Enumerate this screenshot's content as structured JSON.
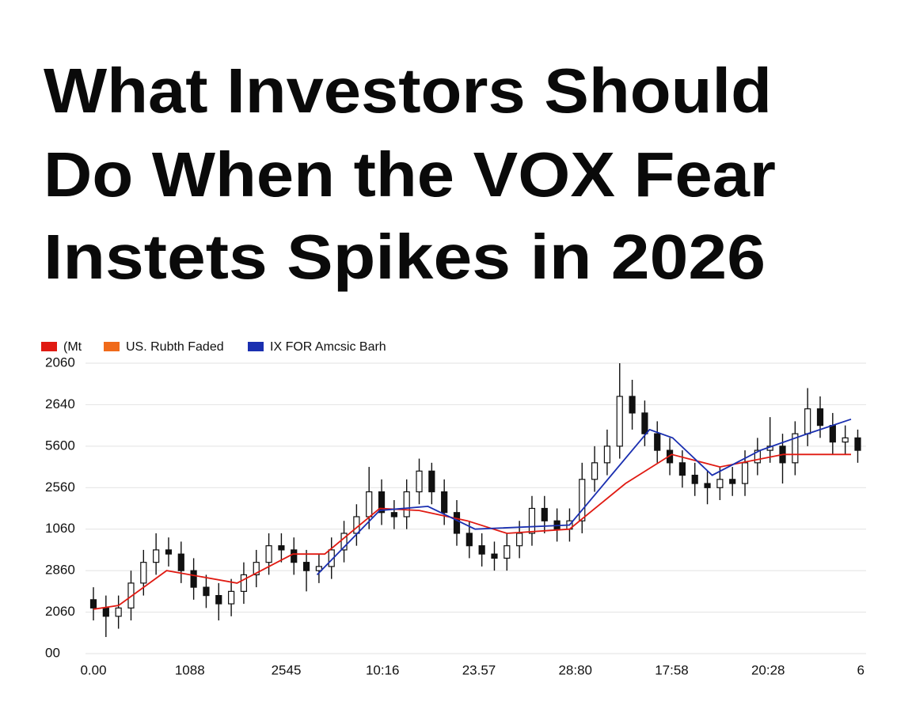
{
  "chart_data": {
    "type": "candlestick",
    "title_lines": [
      "What Investors Should",
      "Do When the VOX Fear",
      "Instets Spikes in 2026"
    ],
    "xlim": [
      0,
      8
    ],
    "xticks": [
      {
        "value": 0,
        "label": "0.00"
      },
      {
        "value": 1,
        "label": "1088"
      },
      {
        "value": 2,
        "label": "2545"
      },
      {
        "value": 3,
        "label": "10:16"
      },
      {
        "value": 4,
        "label": "23.57"
      },
      {
        "value": 5,
        "label": "28:80"
      },
      {
        "value": 6,
        "label": "17:58"
      },
      {
        "value": 7,
        "label": "20:28"
      },
      {
        "value": 8,
        "label": "6"
      }
    ],
    "ylim": [
      0,
      7
    ],
    "yticks": [
      {
        "value": 0,
        "label": "00"
      },
      {
        "value": 1,
        "label": "2060"
      },
      {
        "value": 2,
        "label": "2860"
      },
      {
        "value": 3,
        "label": "1060"
      },
      {
        "value": 4,
        "label": "2560"
      },
      {
        "value": 5,
        "label": "5600"
      },
      {
        "value": 6,
        "label": "2640"
      },
      {
        "value": 7,
        "label": "2060"
      }
    ],
    "grid": true,
    "x": [
      0,
      0.13,
      0.26,
      0.39,
      0.52,
      0.65,
      0.78,
      0.91,
      1.04,
      1.17,
      1.3,
      1.43,
      1.56,
      1.69,
      1.82,
      1.95,
      2.08,
      2.21,
      2.34,
      2.47,
      2.6,
      2.73,
      2.86,
      2.99,
      3.12,
      3.25,
      3.38,
      3.51,
      3.64,
      3.77,
      3.9,
      4.03,
      4.16,
      4.29,
      4.42,
      4.55,
      4.68,
      4.81,
      4.94,
      5.07,
      5.2,
      5.33,
      5.46,
      5.59,
      5.72,
      5.85,
      5.98,
      6.11,
      6.24,
      6.37,
      6.5,
      6.63,
      6.76,
      6.89,
      7.02,
      7.15,
      7.28,
      7.41,
      7.54,
      7.67,
      7.8,
      7.93
    ],
    "open": [
      1.3,
      1.1,
      0.9,
      1.1,
      1.7,
      2.2,
      2.5,
      2.4,
      2.0,
      1.6,
      1.4,
      1.2,
      1.5,
      1.9,
      2.2,
      2.6,
      2.5,
      2.2,
      2.0,
      2.1,
      2.5,
      2.9,
      3.3,
      3.9,
      3.4,
      3.3,
      3.9,
      4.4,
      3.9,
      3.4,
      2.9,
      2.6,
      2.4,
      2.3,
      2.6,
      2.9,
      3.5,
      3.2,
      3.0,
      3.2,
      4.2,
      4.6,
      5.0,
      6.2,
      5.8,
      5.3,
      4.9,
      4.6,
      4.3,
      4.1,
      4.0,
      4.2,
      4.1,
      4.6,
      4.9,
      5.0,
      4.6,
      5.3,
      5.9,
      5.5,
      5.1,
      5.2
    ],
    "high": [
      1.6,
      1.4,
      1.4,
      2.0,
      2.5,
      2.9,
      2.8,
      2.7,
      2.3,
      1.9,
      1.7,
      1.8,
      2.2,
      2.5,
      2.9,
      2.9,
      2.8,
      2.5,
      2.4,
      2.8,
      3.2,
      3.6,
      4.5,
      4.2,
      3.7,
      4.2,
      4.7,
      4.6,
      4.2,
      3.7,
      3.2,
      2.9,
      2.7,
      2.9,
      3.2,
      3.8,
      3.8,
      3.5,
      3.5,
      4.6,
      5.0,
      5.4,
      7.0,
      6.6,
      6.1,
      5.6,
      5.2,
      4.9,
      4.6,
      4.4,
      4.5,
      4.5,
      4.9,
      5.2,
      5.7,
      5.3,
      5.6,
      6.4,
      6.2,
      5.8,
      5.5,
      5.4
    ],
    "low": [
      0.8,
      0.4,
      0.6,
      0.8,
      1.4,
      1.9,
      2.1,
      1.7,
      1.3,
      1.1,
      0.8,
      0.9,
      1.2,
      1.6,
      1.9,
      2.2,
      1.9,
      1.5,
      1.7,
      1.8,
      2.2,
      2.6,
      3.0,
      3.1,
      3.0,
      3.0,
      3.6,
      3.6,
      3.1,
      2.6,
      2.3,
      2.1,
      2.0,
      2.0,
      2.3,
      2.6,
      2.9,
      2.7,
      2.7,
      2.9,
      3.9,
      4.3,
      4.7,
      5.4,
      5.0,
      4.6,
      4.3,
      4.0,
      3.8,
      3.6,
      3.7,
      3.8,
      3.8,
      4.3,
      4.6,
      4.1,
      4.3,
      5.0,
      5.2,
      4.8,
      4.8,
      4.6
    ],
    "close": [
      1.1,
      0.9,
      1.1,
      1.7,
      2.2,
      2.5,
      2.4,
      2.0,
      1.6,
      1.4,
      1.2,
      1.5,
      1.9,
      2.2,
      2.6,
      2.5,
      2.2,
      2.0,
      2.1,
      2.5,
      2.9,
      3.3,
      3.9,
      3.4,
      3.3,
      3.9,
      4.4,
      3.9,
      3.4,
      2.9,
      2.6,
      2.4,
      2.3,
      2.6,
      2.9,
      3.5,
      3.2,
      3.0,
      3.2,
      4.2,
      4.6,
      5.0,
      6.2,
      5.8,
      5.3,
      4.9,
      4.6,
      4.3,
      4.1,
      4.0,
      4.2,
      4.1,
      4.6,
      4.9,
      5.0,
      4.6,
      5.3,
      5.9,
      5.5,
      5.1,
      5.2,
      4.9
    ],
    "series": [
      {
        "name": "(Mt",
        "color": "#e01a12",
        "x": [
          0,
          0.26,
          0.76,
          1.49,
          2.07,
          2.4,
          2.97,
          3.38,
          3.88,
          4.29,
          4.94,
          5.52,
          6.0,
          6.5,
          7.16,
          7.86
        ],
        "values": [
          1.07,
          1.16,
          2.0,
          1.7,
          2.4,
          2.4,
          3.5,
          3.45,
          3.2,
          2.9,
          3.0,
          4.1,
          4.8,
          4.5,
          4.8,
          4.8
        ]
      },
      {
        "name": "US. Rubth Faded",
        "color": "#f06a1a"
      },
      {
        "name": "IX FOR Amcsic Barh",
        "color": "#1a2fb0",
        "x": [
          2.32,
          2.97,
          3.47,
          3.96,
          4.94,
          5.77,
          6.01,
          6.42,
          6.92,
          7.41,
          7.86
        ],
        "values": [
          1.9,
          3.45,
          3.55,
          3.0,
          3.1,
          5.4,
          5.2,
          4.3,
          4.9,
          5.3,
          5.65
        ]
      }
    ]
  }
}
